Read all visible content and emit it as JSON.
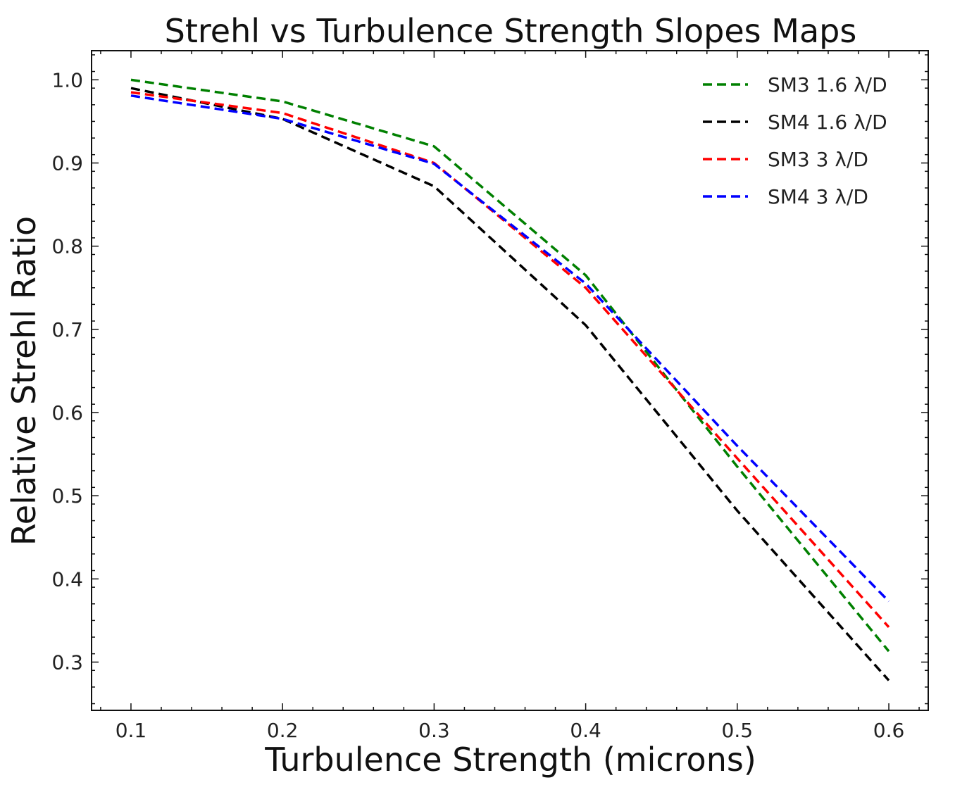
{
  "chart_data": {
    "type": "line",
    "title": "Strehl vs Turbulence Strength Slopes Maps",
    "xlabel": "Turbulence Strength (microns)",
    "ylabel": "Relative Strehl Ratio",
    "xlim": [
      0.074,
      0.626
    ],
    "ylim": [
      0.242,
      1.035
    ],
    "xticks": [
      0.1,
      0.2,
      0.3,
      0.4,
      0.5,
      0.6
    ],
    "xtick_labels": [
      "0.1",
      "0.2",
      "0.3",
      "0.4",
      "0.5",
      "0.6"
    ],
    "yticks": [
      0.3,
      0.4,
      0.5,
      0.6,
      0.7,
      0.8,
      0.9,
      1.0
    ],
    "ytick_labels": [
      "0.3",
      "0.4",
      "0.5",
      "0.6",
      "0.7",
      "0.8",
      "0.9",
      "1.0"
    ],
    "x": [
      0.1,
      0.2,
      0.3,
      0.4,
      0.5,
      0.6
    ],
    "legend_position": "top-right",
    "grid": false,
    "series": [
      {
        "name": "SM3 1.6 λ/D",
        "color": "#008000",
        "values": [
          1.0,
          0.974,
          0.92,
          0.765,
          0.535,
          0.313
        ]
      },
      {
        "name": "SM4 1.6 λ/D",
        "color": "#000000",
        "values": [
          0.99,
          0.953,
          0.872,
          0.705,
          0.482,
          0.278
        ]
      },
      {
        "name": "SM3 3 λ/D",
        "color": "#ff0000",
        "values": [
          0.985,
          0.96,
          0.9,
          0.75,
          0.545,
          0.342
        ]
      },
      {
        "name": "SM4 3 λ/D",
        "color": "#0000ff",
        "values": [
          0.981,
          0.953,
          0.899,
          0.755,
          0.56,
          0.373
        ]
      }
    ]
  }
}
